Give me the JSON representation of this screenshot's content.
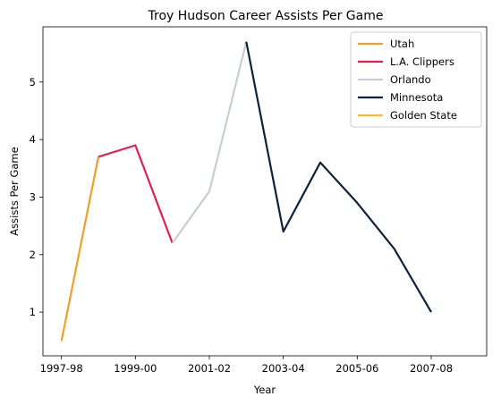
{
  "chart_data": {
    "type": "line",
    "title": "Troy Hudson Career Assists Per Game",
    "xlabel": "Year",
    "ylabel": "Assists Per Game",
    "x_tick_labels": [
      "1997-98",
      "1999-00",
      "2001-02",
      "2003-04",
      "2005-06",
      "2007-08"
    ],
    "y_ticks": [
      1,
      2,
      3,
      4,
      5
    ],
    "xlim": [
      1996.5,
      2008.5
    ],
    "ylim": [
      0.24,
      5.96
    ],
    "grid": false,
    "legend_position": "top-right",
    "series": [
      {
        "name": "Utah",
        "color": "#F29E28",
        "x": [
          1997,
          1998
        ],
        "y": [
          0.5,
          3.7
        ]
      },
      {
        "name": "L.A. Clippers",
        "color": "#E2204C",
        "x": [
          1998,
          1999,
          2000
        ],
        "y": [
          3.7,
          3.9,
          2.2
        ]
      },
      {
        "name": "Orlando",
        "color": "#C4CED4",
        "x": [
          2000,
          2001,
          2002
        ],
        "y": [
          2.2,
          3.1,
          5.7
        ]
      },
      {
        "name": "Minnesota",
        "color": "#0C2340",
        "x": [
          2002,
          2003,
          2004,
          2005,
          2006,
          2007
        ],
        "y": [
          5.7,
          2.4,
          3.6,
          2.9,
          2.1,
          1.0
        ]
      },
      {
        "name": "Golden State",
        "color": "#FDB927",
        "x": [],
        "y": []
      }
    ]
  }
}
